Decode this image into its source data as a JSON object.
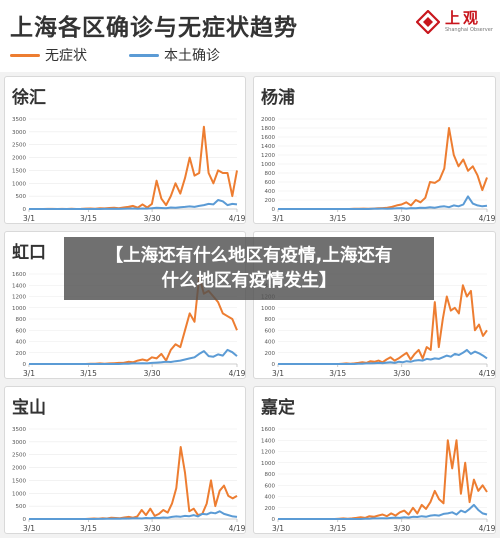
{
  "title": "上海各区确诊与无症状趋势",
  "legend": [
    {
      "label": "无症状",
      "color": "#ed7d31"
    },
    {
      "label": "本土确诊",
      "color": "#5b9bd5"
    }
  ],
  "logo": {
    "cn": "上观",
    "en": "Shanghai Observer"
  },
  "overlay": {
    "line1": "【上海还有什么地区有疫情,上海还有",
    "line2": "什么地区有疫情发生】"
  },
  "chart_data": [
    {
      "type": "line",
      "title": "徐汇",
      "x_ticks": [
        "3/1",
        "3/15",
        "3/30",
        "4/19"
      ],
      "ylim": [
        0,
        3500
      ],
      "y_ticks": [
        0,
        500,
        1000,
        1500,
        2000,
        2500,
        3000,
        3500
      ],
      "series": [
        {
          "name": "无症状",
          "values": [
            0,
            0,
            0,
            0,
            2,
            3,
            0,
            5,
            0,
            10,
            0,
            5,
            15,
            20,
            10,
            30,
            25,
            40,
            50,
            30,
            60,
            80,
            120,
            50,
            180,
            60,
            200,
            1100,
            400,
            150,
            500,
            1000,
            600,
            1200,
            2000,
            1300,
            1400,
            3200,
            1400,
            1000,
            1500,
            1400,
            1400,
            500,
            1500
          ]
        },
        {
          "name": "本土确诊",
          "values": [
            0,
            0,
            0,
            0,
            0,
            0,
            0,
            0,
            0,
            0,
            0,
            0,
            0,
            0,
            0,
            0,
            5,
            5,
            10,
            5,
            10,
            15,
            20,
            10,
            20,
            15,
            30,
            50,
            40,
            30,
            60,
            50,
            70,
            80,
            100,
            80,
            120,
            150,
            200,
            180,
            350,
            300,
            150,
            200,
            180
          ]
        }
      ]
    },
    {
      "type": "line",
      "title": "杨浦",
      "x_ticks": [
        "3/1",
        "3/15",
        "3/30",
        "4/19"
      ],
      "ylim": [
        0,
        2000
      ],
      "y_ticks": [
        0,
        200,
        400,
        600,
        800,
        1000,
        1200,
        1400,
        1600,
        1800,
        2000
      ],
      "series": [
        {
          "name": "无症状",
          "values": [
            0,
            0,
            0,
            0,
            0,
            0,
            0,
            0,
            0,
            0,
            0,
            0,
            0,
            0,
            0,
            0,
            5,
            5,
            10,
            5,
            10,
            15,
            20,
            30,
            50,
            80,
            100,
            150,
            80,
            200,
            150,
            250,
            600,
            580,
            650,
            900,
            1800,
            1200,
            950,
            1100,
            850,
            950,
            750,
            420,
            700
          ]
        },
        {
          "name": "本土确诊",
          "values": [
            0,
            0,
            0,
            0,
            0,
            0,
            0,
            0,
            0,
            0,
            0,
            0,
            0,
            0,
            0,
            0,
            0,
            0,
            0,
            0,
            5,
            5,
            10,
            5,
            10,
            15,
            20,
            10,
            20,
            15,
            30,
            25,
            40,
            30,
            50,
            60,
            40,
            80,
            60,
            100,
            280,
            120,
            80,
            60,
            70
          ]
        }
      ]
    },
    {
      "type": "line",
      "title": "虹口",
      "x_ticks": [
        "3/1",
        "3/15",
        "3/30",
        "4/19"
      ],
      "ylim": [
        0,
        1600
      ],
      "y_ticks": [
        0,
        200,
        400,
        600,
        800,
        1000,
        1200,
        1400,
        1600
      ],
      "series": [
        {
          "name": "无症状",
          "values": [
            0,
            0,
            0,
            0,
            0,
            0,
            0,
            0,
            0,
            0,
            0,
            0,
            0,
            5,
            5,
            10,
            5,
            10,
            15,
            20,
            20,
            40,
            30,
            60,
            80,
            60,
            120,
            100,
            180,
            60,
            250,
            350,
            300,
            600,
            900,
            750,
            1550,
            1250,
            1300,
            1200,
            1100,
            900,
            850,
            800,
            600
          ]
        },
        {
          "name": "本土确诊",
          "values": [
            0,
            0,
            0,
            0,
            0,
            0,
            0,
            0,
            0,
            0,
            0,
            0,
            0,
            0,
            0,
            0,
            0,
            0,
            0,
            0,
            5,
            5,
            10,
            10,
            15,
            10,
            20,
            25,
            30,
            40,
            35,
            50,
            60,
            80,
            100,
            120,
            180,
            230,
            140,
            130,
            170,
            150,
            250,
            210,
            140
          ]
        }
      ]
    },
    {
      "type": "line",
      "title": "",
      "x_ticks": [
        "3/1",
        "3/15",
        "3/30",
        "4/19"
      ],
      "ylim": [
        0,
        1600
      ],
      "y_ticks": [
        0,
        200,
        400,
        600,
        800,
        1000,
        1200,
        1400,
        1600
      ],
      "series": [
        {
          "name": "无症状",
          "values": [
            0,
            0,
            0,
            0,
            0,
            0,
            0,
            0,
            0,
            0,
            0,
            0,
            0,
            0,
            0,
            0,
            5,
            10,
            5,
            10,
            20,
            30,
            20,
            50,
            40,
            60,
            30,
            80,
            120,
            60,
            100,
            150,
            200,
            80,
            180,
            250,
            100,
            300,
            250,
            1100,
            300,
            800,
            1200,
            950,
            1000,
            900,
            1400,
            1200,
            1300,
            600,
            700,
            500,
            600
          ]
        },
        {
          "name": "本土确诊",
          "values": [
            0,
            0,
            0,
            0,
            0,
            0,
            0,
            0,
            0,
            0,
            0,
            0,
            0,
            0,
            0,
            0,
            0,
            0,
            0,
            0,
            5,
            5,
            10,
            10,
            15,
            20,
            15,
            25,
            30,
            20,
            40,
            30,
            50,
            40,
            60,
            70,
            60,
            90,
            80,
            100,
            90,
            120,
            150,
            130,
            180,
            160,
            200,
            250,
            180,
            220,
            190,
            150,
            100
          ]
        }
      ]
    },
    {
      "type": "line",
      "title": "宝山",
      "x_ticks": [
        "3/1",
        "3/15",
        "3/30",
        "4/19"
      ],
      "ylim": [
        0,
        3500
      ],
      "y_ticks": [
        0,
        500,
        1000,
        1500,
        2000,
        2500,
        3000,
        3500
      ],
      "series": [
        {
          "name": "无症状",
          "values": [
            0,
            0,
            0,
            0,
            0,
            0,
            0,
            0,
            0,
            0,
            0,
            0,
            0,
            0,
            10,
            20,
            10,
            30,
            20,
            50,
            40,
            30,
            60,
            80,
            50,
            100,
            350,
            150,
            400,
            120,
            200,
            350,
            250,
            600,
            1200,
            2800,
            1800,
            300,
            400,
            150,
            200,
            600,
            1500,
            500,
            1100,
            1300,
            900,
            800,
            900
          ]
        },
        {
          "name": "本土确诊",
          "values": [
            0,
            0,
            0,
            0,
            0,
            0,
            0,
            0,
            0,
            0,
            0,
            0,
            0,
            0,
            0,
            0,
            5,
            5,
            10,
            10,
            15,
            10,
            20,
            15,
            25,
            30,
            20,
            40,
            30,
            50,
            40,
            60,
            50,
            80,
            100,
            90,
            120,
            110,
            150,
            100,
            200,
            180,
            250,
            220,
            300,
            200,
            150,
            100,
            80
          ]
        }
      ]
    },
    {
      "type": "line",
      "title": "嘉定",
      "x_ticks": [
        "3/1",
        "3/15",
        "3/30",
        "4/19"
      ],
      "ylim": [
        0,
        1600
      ],
      "y_ticks": [
        0,
        200,
        400,
        600,
        800,
        1000,
        1200,
        1400,
        1600
      ],
      "series": [
        {
          "name": "无症状",
          "values": [
            0,
            0,
            0,
            0,
            0,
            0,
            0,
            0,
            0,
            0,
            0,
            0,
            0,
            0,
            5,
            10,
            5,
            10,
            20,
            30,
            20,
            50,
            40,
            60,
            80,
            50,
            100,
            60,
            120,
            150,
            80,
            200,
            100,
            250,
            180,
            300,
            500,
            350,
            280,
            1400,
            900,
            1400,
            450,
            1000,
            300,
            700,
            500,
            600,
            480
          ]
        },
        {
          "name": "本土确诊",
          "values": [
            0,
            0,
            0,
            0,
            0,
            0,
            0,
            0,
            0,
            0,
            0,
            0,
            0,
            0,
            0,
            0,
            0,
            0,
            0,
            0,
            5,
            5,
            10,
            10,
            15,
            10,
            20,
            25,
            20,
            30,
            25,
            40,
            35,
            50,
            40,
            60,
            70,
            60,
            90,
            100,
            120,
            80,
            150,
            120,
            180,
            250,
            160,
            100,
            80
          ]
        }
      ]
    }
  ]
}
